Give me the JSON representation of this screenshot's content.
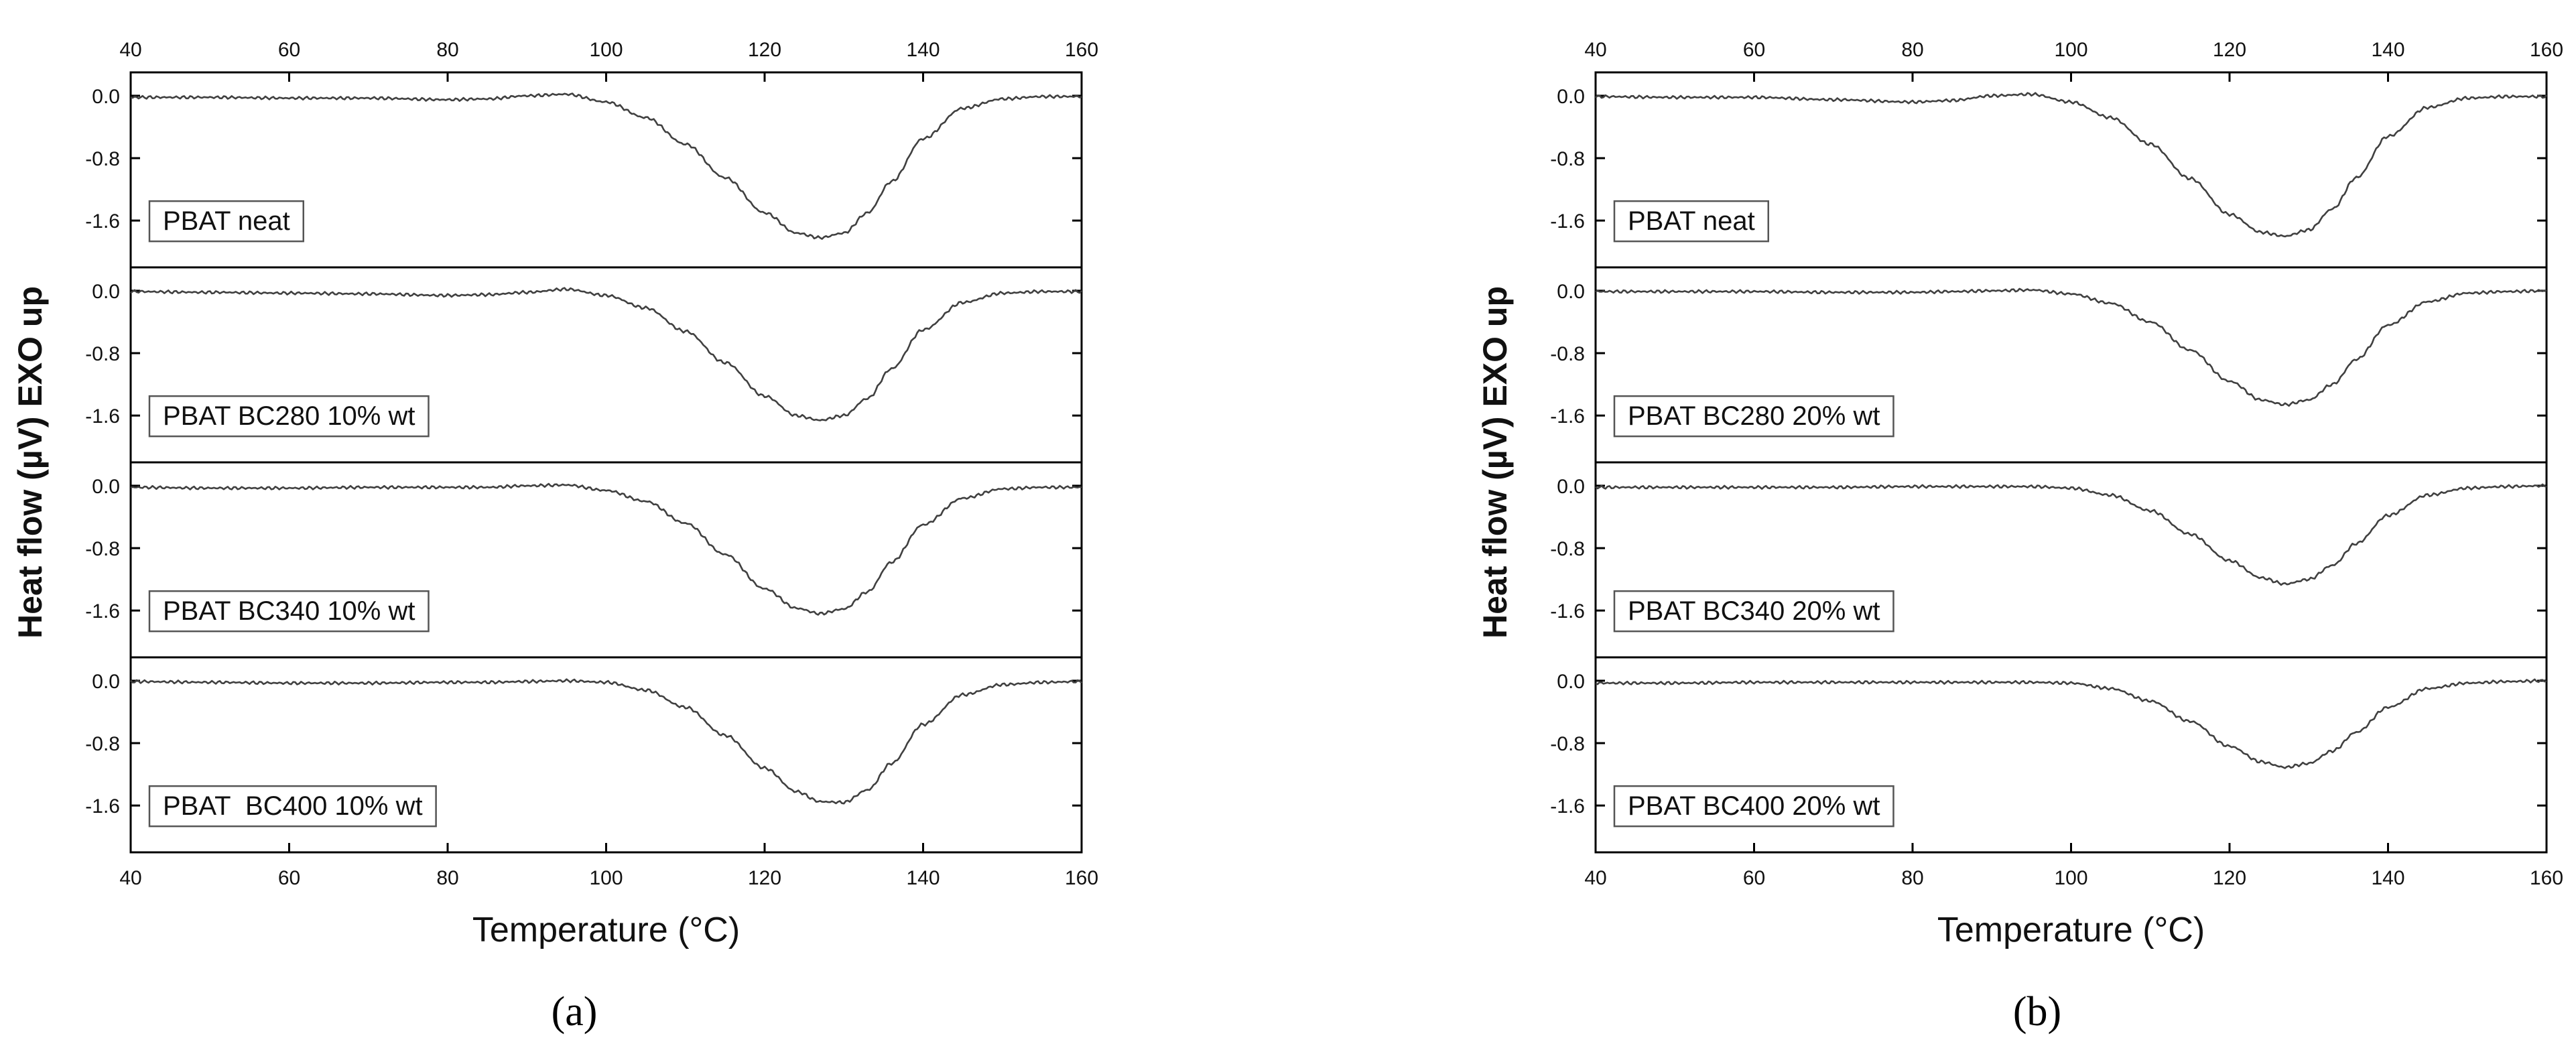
{
  "chart_data": [
    {
      "type": "line",
      "panel_caption": "(a)",
      "xlabel": "Temperature (°C)",
      "ylabel": "Heat flow (µV) EXO up",
      "xlim": [
        40,
        160
      ],
      "x_ticks": [
        40,
        60,
        80,
        100,
        120,
        140,
        160
      ],
      "x_tick_labels": [
        "40",
        "60",
        "80",
        "100",
        "120",
        "140",
        "160"
      ],
      "ylim": [
        -2.2,
        0.3
      ],
      "y_ticks": [
        0.0,
        -0.8,
        -1.6
      ],
      "y_tick_labels": [
        "0.0",
        "-0.8",
        "-1.6"
      ],
      "grid": false,
      "series": [
        {
          "name": "PBAT neat",
          "x": [
            40,
            50,
            60,
            70,
            80,
            85,
            90,
            95,
            100,
            105,
            110,
            115,
            120,
            124,
            127,
            130,
            133,
            136,
            140,
            145,
            150,
            155,
            160
          ],
          "y": [
            -0.02,
            -0.02,
            -0.03,
            -0.03,
            -0.05,
            -0.04,
            0.0,
            0.02,
            -0.08,
            -0.28,
            -0.62,
            -1.05,
            -1.5,
            -1.76,
            -1.82,
            -1.76,
            -1.5,
            -1.1,
            -0.55,
            -0.16,
            -0.04,
            -0.01,
            -0.01
          ]
        },
        {
          "name": "PBAT BC280 10% wt",
          "x": [
            40,
            50,
            60,
            70,
            80,
            85,
            90,
            95,
            100,
            105,
            110,
            115,
            120,
            124,
            127,
            130,
            133,
            136,
            140,
            145,
            150,
            155,
            160
          ],
          "y": [
            -0.01,
            -0.02,
            -0.03,
            -0.04,
            -0.06,
            -0.05,
            -0.02,
            0.02,
            -0.06,
            -0.22,
            -0.52,
            -0.92,
            -1.35,
            -1.6,
            -1.66,
            -1.6,
            -1.38,
            -1.0,
            -0.5,
            -0.15,
            -0.03,
            -0.01,
            -0.01
          ]
        },
        {
          "name": "PBAT BC340 10% wt",
          "x": [
            40,
            50,
            60,
            70,
            80,
            85,
            90,
            95,
            100,
            105,
            110,
            115,
            120,
            124,
            127,
            130,
            133,
            136,
            140,
            145,
            150,
            155,
            160
          ],
          "y": [
            -0.02,
            -0.03,
            -0.03,
            -0.02,
            -0.02,
            -0.02,
            0.0,
            0.01,
            -0.06,
            -0.2,
            -0.48,
            -0.88,
            -1.32,
            -1.57,
            -1.64,
            -1.58,
            -1.36,
            -0.98,
            -0.5,
            -0.16,
            -0.04,
            -0.02,
            -0.02
          ]
        },
        {
          "name": "PBAT  BC400 10% wt",
          "x": [
            40,
            50,
            60,
            70,
            80,
            85,
            90,
            95,
            100,
            105,
            110,
            115,
            120,
            124,
            127,
            130,
            133,
            136,
            140,
            145,
            150,
            155,
            160
          ],
          "y": [
            -0.01,
            -0.02,
            -0.03,
            -0.03,
            -0.02,
            -0.02,
            -0.01,
            0.0,
            -0.02,
            -0.12,
            -0.34,
            -0.7,
            -1.12,
            -1.42,
            -1.55,
            -1.56,
            -1.4,
            -1.06,
            -0.56,
            -0.18,
            -0.05,
            -0.02,
            -0.01
          ]
        }
      ]
    },
    {
      "type": "line",
      "panel_caption": "(b)",
      "xlabel": "Temperature (°C)",
      "ylabel": "Heat flow (µV) EXO up",
      "xlim": [
        40,
        160
      ],
      "x_ticks": [
        40,
        60,
        80,
        100,
        120,
        140,
        160
      ],
      "x_tick_labels": [
        "40",
        "60",
        "80",
        "100",
        "120",
        "140",
        "160"
      ],
      "ylim": [
        -2.2,
        0.3
      ],
      "y_ticks": [
        0.0,
        -0.8,
        -1.6
      ],
      "y_tick_labels": [
        "0.0",
        "-0.8",
        "-1.6"
      ],
      "grid": false,
      "series": [
        {
          "name": "PBAT neat",
          "x": [
            40,
            50,
            60,
            70,
            80,
            85,
            90,
            95,
            100,
            105,
            110,
            115,
            120,
            124,
            127,
            130,
            133,
            136,
            140,
            145,
            150,
            155,
            160
          ],
          "y": [
            -0.01,
            -0.02,
            -0.02,
            -0.05,
            -0.08,
            -0.06,
            0.0,
            0.02,
            -0.08,
            -0.28,
            -0.62,
            -1.06,
            -1.52,
            -1.75,
            -1.8,
            -1.72,
            -1.45,
            -1.05,
            -0.52,
            -0.15,
            -0.03,
            -0.01,
            -0.01
          ]
        },
        {
          "name": "PBAT BC280 20% wt",
          "x": [
            40,
            50,
            60,
            70,
            80,
            85,
            90,
            95,
            100,
            105,
            110,
            115,
            120,
            124,
            127,
            130,
            133,
            136,
            140,
            145,
            150,
            155,
            160
          ],
          "y": [
            -0.01,
            -0.01,
            -0.01,
            -0.02,
            -0.02,
            -0.01,
            0.0,
            0.01,
            -0.04,
            -0.16,
            -0.4,
            -0.76,
            -1.16,
            -1.4,
            -1.46,
            -1.4,
            -1.2,
            -0.88,
            -0.44,
            -0.14,
            -0.03,
            -0.01,
            0.0
          ]
        },
        {
          "name": "PBAT BC340 20% wt",
          "x": [
            40,
            50,
            60,
            70,
            80,
            85,
            90,
            95,
            100,
            105,
            110,
            115,
            120,
            124,
            127,
            130,
            133,
            136,
            140,
            145,
            150,
            155,
            160
          ],
          "y": [
            -0.02,
            -0.02,
            -0.02,
            -0.02,
            -0.01,
            -0.01,
            -0.01,
            -0.01,
            -0.03,
            -0.12,
            -0.32,
            -0.62,
            -0.96,
            -1.18,
            -1.26,
            -1.2,
            -1.02,
            -0.74,
            -0.38,
            -0.12,
            -0.03,
            -0.01,
            0.0
          ]
        },
        {
          "name": "PBAT BC400 20% wt",
          "x": [
            40,
            50,
            60,
            70,
            80,
            85,
            90,
            95,
            100,
            105,
            110,
            115,
            120,
            124,
            127,
            130,
            133,
            136,
            140,
            145,
            150,
            155,
            160
          ],
          "y": [
            -0.03,
            -0.03,
            -0.02,
            -0.02,
            -0.02,
            -0.02,
            -0.02,
            -0.02,
            -0.03,
            -0.1,
            -0.26,
            -0.52,
            -0.84,
            -1.04,
            -1.11,
            -1.06,
            -0.9,
            -0.66,
            -0.34,
            -0.1,
            -0.03,
            -0.01,
            0.0
          ]
        }
      ]
    }
  ]
}
